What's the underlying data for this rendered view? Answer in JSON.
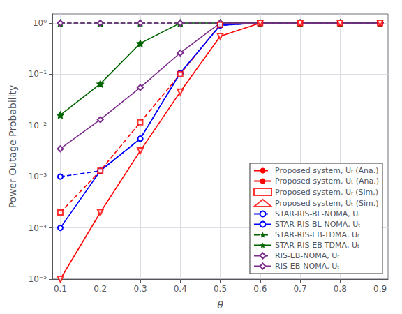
{
  "chart_data": {
    "type": "line",
    "xlabel": "θ",
    "ylabel": "Power Outage Probability",
    "log": "y",
    "grid": true,
    "legend": "lower right",
    "x": [
      0.1,
      0.2,
      0.3,
      0.4,
      0.5,
      0.6,
      0.7,
      0.8,
      0.9
    ],
    "xlim": [
      0.08,
      0.92
    ],
    "xticks": [
      0.1,
      0.2,
      0.3,
      0.4,
      0.5,
      0.6,
      0.7,
      0.8,
      0.9
    ],
    "ylim": [
      1e-05,
      1.5
    ],
    "yticks": [
      {
        "value": 1e-05,
        "label": "10⁻⁵"
      },
      {
        "value": 0.0001,
        "label": "10⁻⁴"
      },
      {
        "value": 0.001,
        "label": "10⁻³"
      },
      {
        "value": 0.01,
        "label": "10⁻²"
      },
      {
        "value": 0.1,
        "label": "10⁻¹"
      },
      {
        "value": 1,
        "label": "10⁰"
      }
    ],
    "series": [
      {
        "name": "Proposed system, Uᵣ (Ana.)",
        "type": "line",
        "color": "#ff0000",
        "line_style": "dashed",
        "values": [
          0.0002,
          0.0013,
          0.0115,
          0.1,
          0.93,
          1.0,
          1.0,
          1.0,
          1.0
        ]
      },
      {
        "name": "Proposed system, Uₜ (Ana.)",
        "type": "line",
        "color": "#ff0000",
        "line_style": "solid",
        "values": [
          1e-05,
          0.0002,
          0.0032,
          0.045,
          0.55,
          1.0,
          1.0,
          1.0,
          1.0
        ]
      },
      {
        "name": "Proposed system, Uᵣ (Sim.)",
        "type": "scatter",
        "color": "#ff0000",
        "marker": "square",
        "values": [
          0.0002,
          0.0013,
          0.0115,
          0.1,
          0.93,
          1.0,
          1.0,
          1.0,
          1.0
        ]
      },
      {
        "name": "Proposed system, Uₜ (Sim.)",
        "type": "scatter",
        "color": "#ff0000",
        "marker": "triangle_down",
        "values": [
          1e-05,
          0.0002,
          0.0032,
          0.045,
          0.55,
          1.0,
          1.0,
          1.0,
          1.0
        ]
      },
      {
        "name": "STAR-RIS-BL-NOMA, Uᵣ",
        "type": "line",
        "color": "#0000ff",
        "line_style": "dashed",
        "marker": "circle",
        "values": [
          0.001,
          0.0013,
          0.0055,
          0.105,
          0.9,
          1.0,
          1.0,
          1.0,
          1.0
        ]
      },
      {
        "name": "STAR-RIS-BL-NOMA, Uₜ",
        "type": "line",
        "color": "#0000ff",
        "line_style": "solid",
        "marker": "circle",
        "values": [
          0.0001,
          0.0013,
          0.0055,
          0.105,
          0.9,
          1.0,
          1.0,
          1.0,
          1.0
        ]
      },
      {
        "name": "STAR-RIS-EB-TDMA, Uᵣ",
        "type": "line",
        "color": "#006400",
        "line_style": "dashed",
        "marker": "star",
        "values": [
          1.0,
          1.0,
          1.0,
          1.0,
          1.0,
          1.0,
          1.0,
          1.0,
          1.0
        ]
      },
      {
        "name": "STAR-RIS-EB-TDMA, Uₜ",
        "type": "line",
        "color": "#006400",
        "line_style": "solid",
        "marker": "star",
        "values": [
          0.016,
          0.065,
          0.4,
          1.0,
          1.0,
          1.0,
          1.0,
          1.0,
          1.0
        ]
      },
      {
        "name": "RIS-EB-NOMA, Uᵣ",
        "type": "line",
        "color": "#7B2D8B",
        "line_style": "dashed",
        "marker": "diamond",
        "values": [
          1.0,
          1.0,
          1.0,
          1.0,
          1.0,
          1.0,
          1.0,
          1.0,
          1.0
        ]
      },
      {
        "name": "RIS-EB-NOMA, Uₜ",
        "type": "line",
        "color": "#7B2D8B",
        "line_style": "solid",
        "marker": "diamond",
        "values": [
          0.0035,
          0.013,
          0.055,
          0.26,
          1.0,
          1.0,
          1.0,
          1.0,
          1.0
        ]
      }
    ]
  }
}
